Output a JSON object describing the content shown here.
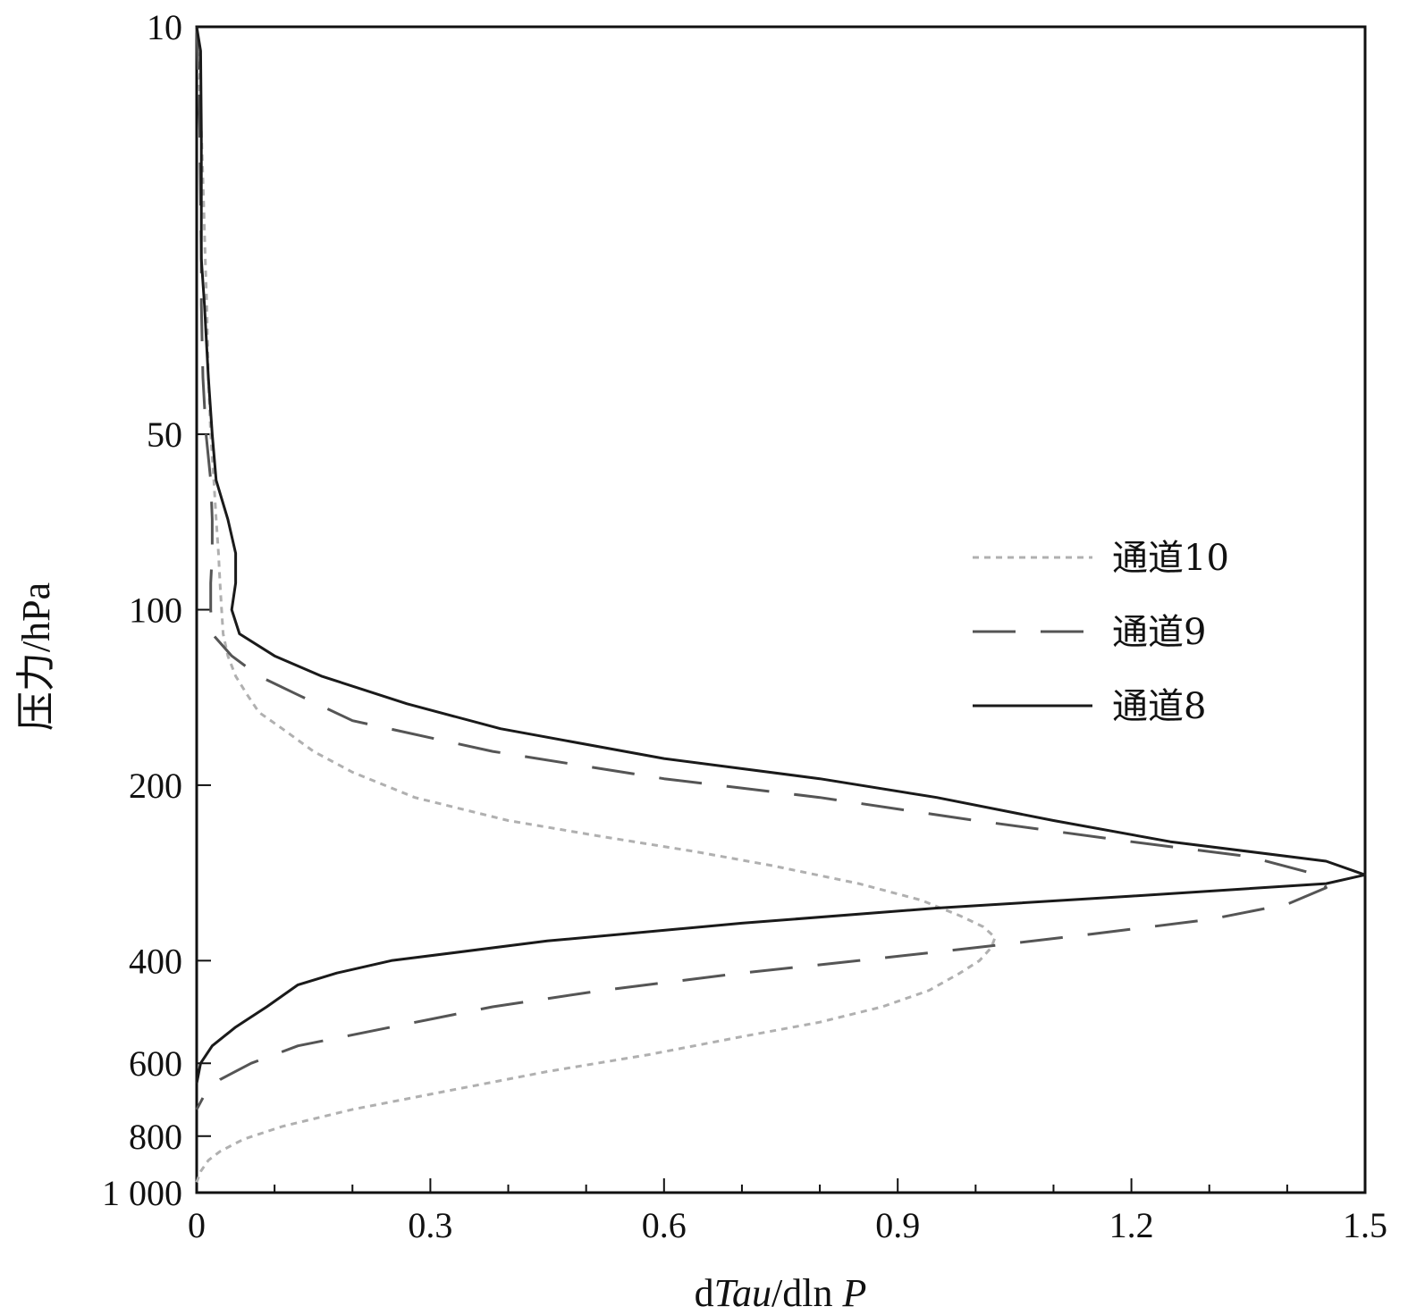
{
  "chart_data": {
    "type": "line",
    "title": "",
    "xlabel": {
      "prefix": "d",
      "italic1": "Tau",
      "middle": "/dln ",
      "italic2": "P"
    },
    "ylabel": "压力/hPa",
    "xlim": [
      0,
      1.5
    ],
    "ylim": [
      10,
      1000
    ],
    "y_scale": "log",
    "y_reversed": true,
    "x_ticks": [
      0,
      0.3,
      0.6,
      0.9,
      1.2,
      1.5
    ],
    "x_tick_labels": [
      "0",
      "0.3",
      "0.6",
      "0.9",
      "1.2",
      "1.5"
    ],
    "x_minor_step": 0.1,
    "y_ticks": [
      10,
      50,
      100,
      200,
      400,
      600,
      800,
      1000
    ],
    "y_tick_labels": [
      "10",
      "50",
      "100",
      "200",
      "400",
      "600",
      "800",
      "1 000"
    ],
    "grid": false,
    "legend_position": "right",
    "series": [
      {
        "name": "通道10",
        "style": "dotted",
        "color": "#b0b0b0",
        "points": [
          [
            0.0,
            10
          ],
          [
            0.003,
            12
          ],
          [
            0.006,
            15
          ],
          [
            0.009,
            20
          ],
          [
            0.011,
            25
          ],
          [
            0.013,
            30
          ],
          [
            0.015,
            40
          ],
          [
            0.018,
            50
          ],
          [
            0.022,
            60
          ],
          [
            0.025,
            70
          ],
          [
            0.028,
            80
          ],
          [
            0.03,
            90
          ],
          [
            0.032,
            100
          ],
          [
            0.034,
            110
          ],
          [
            0.04,
            120
          ],
          [
            0.05,
            130
          ],
          [
            0.065,
            140
          ],
          [
            0.08,
            150
          ],
          [
            0.11,
            160
          ],
          [
            0.15,
            175
          ],
          [
            0.2,
            190
          ],
          [
            0.28,
            210
          ],
          [
            0.4,
            230
          ],
          [
            0.52,
            245
          ],
          [
            0.64,
            260
          ],
          [
            0.74,
            275
          ],
          [
            0.85,
            295
          ],
          [
            0.93,
            315
          ],
          [
            0.98,
            335
          ],
          [
            1.01,
            350
          ],
          [
            1.025,
            365
          ],
          [
            1.02,
            380
          ],
          [
            1.005,
            400
          ],
          [
            0.98,
            420
          ],
          [
            0.94,
            450
          ],
          [
            0.88,
            480
          ],
          [
            0.8,
            510
          ],
          [
            0.7,
            540
          ],
          [
            0.58,
            580
          ],
          [
            0.45,
            620
          ],
          [
            0.32,
            670
          ],
          [
            0.2,
            720
          ],
          [
            0.11,
            770
          ],
          [
            0.06,
            810
          ],
          [
            0.03,
            850
          ],
          [
            0.015,
            880
          ],
          [
            0.005,
            920
          ],
          [
            0.0,
            960
          ]
        ]
      },
      {
        "name": "通道9",
        "style": "dashed",
        "color": "#555555",
        "points": [
          [
            0.0,
            10
          ],
          [
            0.002,
            12
          ],
          [
            0.004,
            15
          ],
          [
            0.005,
            20
          ],
          [
            0.006,
            25
          ],
          [
            0.006,
            30
          ],
          [
            0.008,
            40
          ],
          [
            0.012,
            50
          ],
          [
            0.018,
            60
          ],
          [
            0.02,
            70
          ],
          [
            0.02,
            80
          ],
          [
            0.018,
            90
          ],
          [
            0.018,
            100
          ],
          [
            0.02,
            110
          ],
          [
            0.045,
            120
          ],
          [
            0.08,
            130
          ],
          [
            0.13,
            140
          ],
          [
            0.2,
            155
          ],
          [
            0.38,
            175
          ],
          [
            0.6,
            195
          ],
          [
            0.8,
            210
          ],
          [
            1.0,
            230
          ],
          [
            1.2,
            250
          ],
          [
            1.35,
            265
          ],
          [
            1.44,
            285
          ],
          [
            1.45,
            300
          ],
          [
            1.4,
            320
          ],
          [
            1.3,
            340
          ],
          [
            1.15,
            360
          ],
          [
            1.0,
            380
          ],
          [
            0.85,
            400
          ],
          [
            0.7,
            420
          ],
          [
            0.52,
            450
          ],
          [
            0.38,
            480
          ],
          [
            0.25,
            520
          ],
          [
            0.13,
            560
          ],
          [
            0.07,
            600
          ],
          [
            0.03,
            640
          ],
          [
            0.01,
            680
          ],
          [
            0.0,
            720
          ]
        ]
      },
      {
        "name": "通道8",
        "style": "solid",
        "color": "#1a1a1a",
        "points": [
          [
            0.0,
            10
          ],
          [
            0.005,
            11
          ],
          [
            0.006,
            15
          ],
          [
            0.006,
            20
          ],
          [
            0.006,
            25
          ],
          [
            0.01,
            30
          ],
          [
            0.015,
            40
          ],
          [
            0.02,
            50
          ],
          [
            0.025,
            60
          ],
          [
            0.04,
            70
          ],
          [
            0.05,
            80
          ],
          [
            0.05,
            90
          ],
          [
            0.045,
            100
          ],
          [
            0.055,
            110
          ],
          [
            0.1,
            120
          ],
          [
            0.16,
            130
          ],
          [
            0.27,
            145
          ],
          [
            0.39,
            160
          ],
          [
            0.6,
            180
          ],
          [
            0.8,
            195
          ],
          [
            0.95,
            210
          ],
          [
            1.1,
            230
          ],
          [
            1.25,
            250
          ],
          [
            1.45,
            270
          ],
          [
            1.5,
            285
          ],
          [
            1.45,
            295
          ],
          [
            1.2,
            310
          ],
          [
            0.95,
            325
          ],
          [
            0.7,
            345
          ],
          [
            0.45,
            370
          ],
          [
            0.25,
            400
          ],
          [
            0.18,
            420
          ],
          [
            0.13,
            440
          ],
          [
            0.09,
            480
          ],
          [
            0.05,
            520
          ],
          [
            0.02,
            560
          ],
          [
            0.005,
            600
          ],
          [
            0.0,
            650
          ]
        ]
      }
    ]
  }
}
